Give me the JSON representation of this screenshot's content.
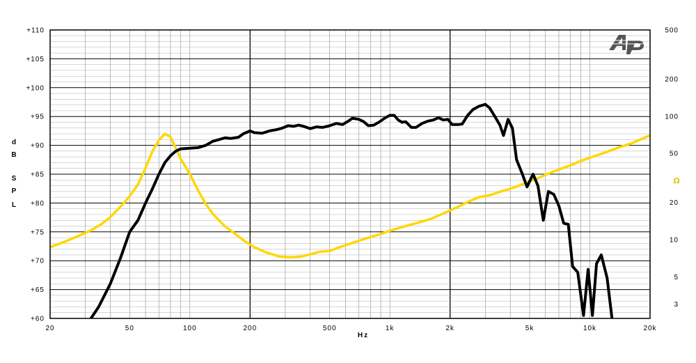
{
  "chart_data": {
    "type": "line",
    "title": "",
    "logo_text": "Ap",
    "x_scale": "log",
    "xlim": [
      20,
      20000
    ],
    "ylim": [
      60,
      110
    ],
    "y2_scale": "log",
    "y2lim": [
      2.3,
      500
    ],
    "xlabel": "Hz",
    "ylabel": [
      "d",
      "B",
      "S",
      "P",
      "L"
    ],
    "y2label": "Ω",
    "grid": true,
    "legend": "none",
    "x_ticks": [
      {
        "v": 20,
        "label": "20"
      },
      {
        "v": 50,
        "label": "50"
      },
      {
        "v": 100,
        "label": "100"
      },
      {
        "v": 200,
        "label": "200"
      },
      {
        "v": 500,
        "label": "500"
      },
      {
        "v": 1000,
        "label": "1k"
      },
      {
        "v": 2000,
        "label": "2k"
      },
      {
        "v": 5000,
        "label": "5k"
      },
      {
        "v": 10000,
        "label": "10k"
      },
      {
        "v": 20000,
        "label": "20k"
      }
    ],
    "y_ticks": [
      {
        "v": 110,
        "label": "+110"
      },
      {
        "v": 105,
        "label": "+105"
      },
      {
        "v": 100,
        "label": "+100"
      },
      {
        "v": 95,
        "label": "+95"
      },
      {
        "v": 90,
        "label": "+90"
      },
      {
        "v": 85,
        "label": "+85"
      },
      {
        "v": 80,
        "label": "+80"
      },
      {
        "v": 75,
        "label": "+75"
      },
      {
        "v": 70,
        "label": "+70"
      },
      {
        "v": 65,
        "label": "+65"
      },
      {
        "v": 60,
        "label": "+60"
      }
    ],
    "y2_ticks": [
      {
        "v": 500,
        "label": "500"
      },
      {
        "v": 200,
        "label": "200"
      },
      {
        "v": 100,
        "label": "100"
      },
      {
        "v": 50,
        "label": "50"
      },
      {
        "v": 20,
        "label": "20"
      },
      {
        "v": 10,
        "label": "10"
      },
      {
        "v": 5,
        "label": "5"
      },
      {
        "v": 3,
        "label": "3"
      }
    ],
    "series": [
      {
        "axis": "left",
        "color": "#000000",
        "points": [
          [
            32,
            60
          ],
          [
            35,
            62
          ],
          [
            40,
            66
          ],
          [
            45,
            70.5
          ],
          [
            50,
            75
          ],
          [
            55,
            77
          ],
          [
            60,
            80
          ],
          [
            65,
            82.5
          ],
          [
            70,
            85
          ],
          [
            75,
            87
          ],
          [
            80,
            88.2
          ],
          [
            85,
            89
          ],
          [
            90,
            89.4
          ],
          [
            100,
            89.5
          ],
          [
            110,
            89.6
          ],
          [
            120,
            90
          ],
          [
            130,
            90.7
          ],
          [
            140,
            91
          ],
          [
            150,
            91.3
          ],
          [
            160,
            91.2
          ],
          [
            175,
            91.4
          ],
          [
            185,
            92
          ],
          [
            200,
            92.5
          ],
          [
            210,
            92.2
          ],
          [
            230,
            92.1
          ],
          [
            250,
            92.5
          ],
          [
            270,
            92.7
          ],
          [
            290,
            93
          ],
          [
            310,
            93.4
          ],
          [
            330,
            93.3
          ],
          [
            350,
            93.5
          ],
          [
            370,
            93.3
          ],
          [
            400,
            92.9
          ],
          [
            430,
            93.2
          ],
          [
            460,
            93.1
          ],
          [
            500,
            93.4
          ],
          [
            540,
            93.8
          ],
          [
            580,
            93.6
          ],
          [
            620,
            94.2
          ],
          [
            650,
            94.7
          ],
          [
            700,
            94.5
          ],
          [
            740,
            94.1
          ],
          [
            780,
            93.4
          ],
          [
            830,
            93.5
          ],
          [
            880,
            94
          ],
          [
            950,
            94.8
          ],
          [
            1000,
            95.2
          ],
          [
            1050,
            95.2
          ],
          [
            1100,
            94.4
          ],
          [
            1150,
            94
          ],
          [
            1200,
            94.1
          ],
          [
            1280,
            93.1
          ],
          [
            1350,
            93.1
          ],
          [
            1450,
            93.8
          ],
          [
            1550,
            94.2
          ],
          [
            1650,
            94.4
          ],
          [
            1750,
            94.8
          ],
          [
            1850,
            94.4
          ],
          [
            1950,
            94.5
          ],
          [
            2050,
            93.6
          ],
          [
            2200,
            93.6
          ],
          [
            2300,
            93.7
          ],
          [
            2450,
            95.2
          ],
          [
            2600,
            96.2
          ],
          [
            2800,
            96.8
          ],
          [
            3000,
            97.1
          ],
          [
            3150,
            96.5
          ],
          [
            3350,
            95
          ],
          [
            3550,
            93.5
          ],
          [
            3700,
            91.7
          ],
          [
            3900,
            94.5
          ],
          [
            4100,
            93
          ],
          [
            4300,
            87.5
          ],
          [
            4600,
            85
          ],
          [
            4850,
            82.8
          ],
          [
            5200,
            85
          ],
          [
            5500,
            83
          ],
          [
            5850,
            77
          ],
          [
            6200,
            82
          ],
          [
            6600,
            81.5
          ],
          [
            7000,
            79.5
          ],
          [
            7400,
            76.5
          ],
          [
            7800,
            76.3
          ],
          [
            8200,
            69
          ],
          [
            8700,
            68
          ],
          [
            9300,
            60.5
          ],
          [
            9800,
            68.5
          ],
          [
            10300,
            60.5
          ],
          [
            10800,
            69.5
          ],
          [
            11400,
            71
          ],
          [
            12200,
            67
          ],
          [
            12900,
            60
          ]
        ]
      },
      {
        "axis": "right",
        "color": "#ffd700",
        "points": [
          [
            20,
            8.7
          ],
          [
            24,
            9.7
          ],
          [
            28,
            10.8
          ],
          [
            32,
            11.9
          ],
          [
            36,
            13.3
          ],
          [
            40,
            15.2
          ],
          [
            45,
            18.5
          ],
          [
            50,
            22.5
          ],
          [
            55,
            28
          ],
          [
            60,
            38
          ],
          [
            65,
            52
          ],
          [
            70,
            64
          ],
          [
            75,
            72
          ],
          [
            80,
            68
          ],
          [
            85,
            55
          ],
          [
            90,
            45
          ],
          [
            100,
            34
          ],
          [
            110,
            25
          ],
          [
            120,
            19.5
          ],
          [
            130,
            16.2
          ],
          [
            140,
            14.3
          ],
          [
            150,
            12.8
          ],
          [
            170,
            11
          ],
          [
            190,
            9.6
          ],
          [
            210,
            8.7
          ],
          [
            240,
            7.9
          ],
          [
            280,
            7.3
          ],
          [
            320,
            7.2
          ],
          [
            360,
            7.3
          ],
          [
            400,
            7.6
          ],
          [
            450,
            8
          ],
          [
            500,
            8.1
          ],
          [
            550,
            8.6
          ],
          [
            600,
            9
          ],
          [
            700,
            9.8
          ],
          [
            800,
            10.5
          ],
          [
            900,
            11.1
          ],
          [
            1000,
            11.8
          ],
          [
            1200,
            12.9
          ],
          [
            1400,
            13.8
          ],
          [
            1600,
            14.7
          ],
          [
            1800,
            16
          ],
          [
            2000,
            17.2
          ],
          [
            2200,
            18.5
          ],
          [
            2500,
            20.5
          ],
          [
            2800,
            22.1
          ],
          [
            3200,
            23
          ],
          [
            3600,
            24.6
          ],
          [
            4000,
            25.8
          ],
          [
            4500,
            27.7
          ],
          [
            5000,
            29.6
          ],
          [
            5500,
            31.5
          ],
          [
            6000,
            33.5
          ],
          [
            7000,
            37
          ],
          [
            8000,
            40
          ],
          [
            9000,
            43.4
          ],
          [
            10000,
            46
          ],
          [
            12000,
            51
          ],
          [
            14000,
            56
          ],
          [
            16000,
            60
          ],
          [
            18000,
            65
          ],
          [
            20000,
            70
          ]
        ]
      }
    ]
  }
}
